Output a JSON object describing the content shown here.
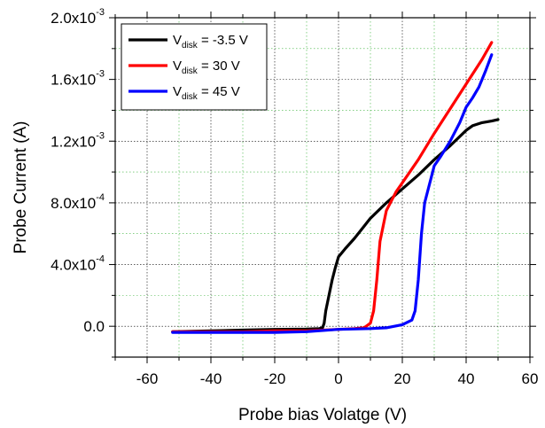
{
  "chart_data": {
    "type": "line",
    "xlabel": "Probe bias Volatge (V)",
    "ylabel": "Probe Current (A)",
    "xlim": [
      -70,
      60
    ],
    "ylim": [
      -0.0002,
      0.002
    ],
    "x_ticks": [
      -60,
      -40,
      -20,
      0,
      20,
      40,
      60
    ],
    "x_tick_labels": [
      "-60",
      "-40",
      "-20",
      "0",
      "20",
      "40",
      "60"
    ],
    "y_ticks": [
      0,
      0.0004,
      0.0008,
      0.0012,
      0.0016,
      0.002
    ],
    "y_tick_labels": [
      {
        "mantissa": "0.0",
        "exp": ""
      },
      {
        "mantissa": "4.0x10",
        "exp": "-4"
      },
      {
        "mantissa": "8.0x10",
        "exp": "-4"
      },
      {
        "mantissa": "1.2x10",
        "exp": "-3"
      },
      {
        "mantissa": "1.6x10",
        "exp": "-3"
      },
      {
        "mantissa": "2.0x10",
        "exp": "-3"
      }
    ],
    "grid": true,
    "legend_position": "top-left",
    "series": [
      {
        "label_main": "V",
        "label_sub": "disk",
        "label_value": " = -3.5 V",
        "color": "#000000",
        "x": [
          -52,
          -40,
          -30,
          -20,
          -10,
          -6,
          -5,
          -4.5,
          -4,
          -3,
          -2,
          -1,
          0,
          2,
          5,
          10,
          15,
          20,
          25,
          30,
          35,
          40,
          42,
          45,
          48,
          50
        ],
        "y": [
          -3.5e-05,
          -3e-05,
          -2.5e-05,
          -2e-05,
          -1.8e-05,
          -1.5e-05,
          -1e-05,
          2e-05,
          0.0001,
          0.0002,
          0.0003,
          0.00038,
          0.00045,
          0.0005,
          0.00057,
          0.0007,
          0.0008,
          0.00089,
          0.00098,
          0.00108,
          0.00117,
          0.00127,
          0.0013,
          0.00132,
          0.00133,
          0.00134
        ]
      },
      {
        "label_main": "V",
        "label_sub": "disk",
        "label_value": " = 30 V",
        "color": "#ff0000",
        "x": [
          -52,
          -40,
          -30,
          -20,
          -10,
          0,
          5,
          8,
          10,
          11,
          12,
          13,
          14,
          15,
          18,
          20,
          25,
          30,
          35,
          40,
          45,
          48
        ],
        "y": [
          -3.5e-05,
          -3.5e-05,
          -3.5e-05,
          -3e-05,
          -3e-05,
          -2e-05,
          -1.5e-05,
          -1e-05,
          2e-05,
          0.0001,
          0.0003,
          0.00055,
          0.00065,
          0.00075,
          0.00087,
          0.00093,
          0.00108,
          0.00125,
          0.00141,
          0.00157,
          0.00173,
          0.00184
        ]
      },
      {
        "label_main": "V",
        "label_sub": "disk",
        "label_value": " = 45 V",
        "color": "#0000ff",
        "x": [
          -52,
          -40,
          -30,
          -20,
          -10,
          0,
          10,
          15,
          20,
          23,
          24,
          25,
          26,
          27,
          28,
          29,
          30,
          32,
          35,
          38,
          40,
          42,
          44,
          46,
          48
        ],
        "y": [
          -4e-05,
          -4e-05,
          -4e-05,
          -4e-05,
          -3.5e-05,
          -2e-05,
          -1.5e-05,
          -1e-05,
          1e-05,
          4e-05,
          0.0001,
          0.0003,
          0.0006,
          0.0008,
          0.00088,
          0.00096,
          0.00104,
          0.0011,
          0.0012,
          0.00132,
          0.00142,
          0.00148,
          0.00155,
          0.00165,
          0.00176
        ]
      }
    ]
  }
}
